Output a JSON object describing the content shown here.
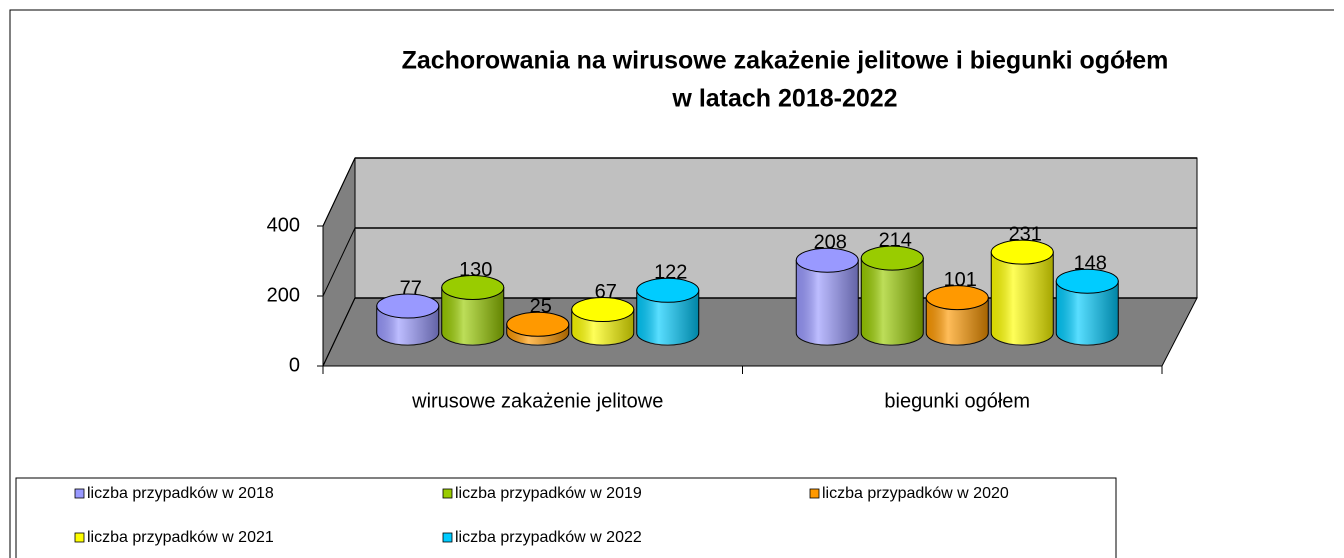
{
  "chart_data": {
    "type": "bar3d",
    "title": [
      "Zachorowania na wirusowe zakażenie jelitowe i biegunki ogółem",
      "w latach 2018-2022"
    ],
    "categories": [
      "wirusowe zakażenie jelitowe",
      "biegunki ogółem"
    ],
    "series": [
      {
        "name": "liczba przypadków w 2018",
        "color": "#9999ff",
        "values": [
          77,
          208
        ]
      },
      {
        "name": "liczba przypadków w 2019",
        "color": "#99cc00",
        "values": [
          130,
          214
        ]
      },
      {
        "name": "liczba przypadków w 2020",
        "color": "#ff9900",
        "values": [
          25,
          101
        ]
      },
      {
        "name": "liczba przypadków w 2021",
        "color": "#ffff00",
        "values": [
          67,
          231
        ]
      },
      {
        "name": "liczba przypadków w 2022",
        "color": "#00ccff",
        "values": [
          122,
          148
        ]
      }
    ],
    "ylim": [
      0,
      400
    ],
    "yticks": [
      0,
      200,
      400
    ],
    "grid": true,
    "legend": "bottom"
  }
}
